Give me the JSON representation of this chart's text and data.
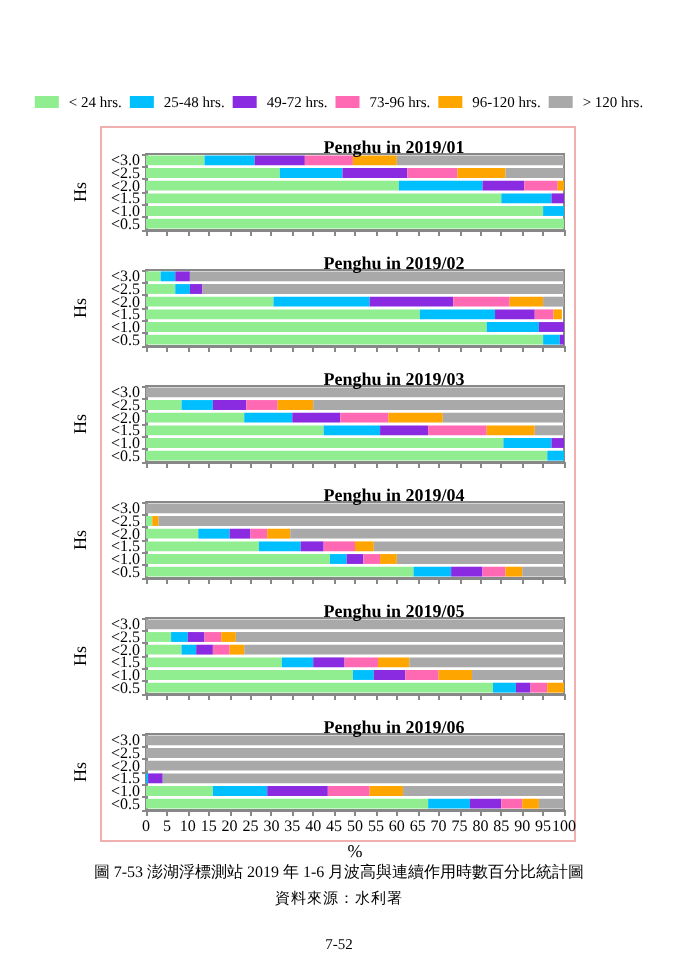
{
  "chart_data": [
    {
      "type": "bar",
      "orientation": "horizontal",
      "stacked": true,
      "title": "Penghu in 2019/01",
      "ylabel": "Hs",
      "categories": [
        "<3.0",
        "<2.5",
        "<2.0",
        "<1.5",
        "<1.0",
        "<0.5"
      ],
      "xlim": [
        0,
        100
      ],
      "xticks": [
        0,
        5,
        10,
        15,
        20,
        25,
        30,
        35,
        40,
        45,
        50,
        55,
        60,
        65,
        70,
        75,
        80,
        85,
        90,
        95,
        100
      ],
      "tick_labels": "y",
      "legend": "top",
      "series": [
        {
          "name": "< 24 hrs.",
          "color": "#90ee90",
          "values": [
            14,
            32,
            60.5,
            85,
            95,
            100
          ]
        },
        {
          "name": "25-48 hrs.",
          "color": "#00bfff",
          "values": [
            12,
            15,
            20,
            12,
            5,
            0
          ]
        },
        {
          "name": "49-72 hrs.",
          "color": "#8a2be2",
          "values": [
            12,
            15.5,
            10,
            3,
            0,
            0
          ]
        },
        {
          "name": "73-96 hrs.",
          "color": "#ff69b4",
          "values": [
            11.5,
            12,
            8,
            0,
            0,
            0
          ]
        },
        {
          "name": "96-120 hrs.",
          "color": "#ffa500",
          "values": [
            10.5,
            11.5,
            1.5,
            0,
            0,
            0
          ]
        },
        {
          "name": "> 120 hrs.",
          "color": "#a9a9a9",
          "values": [
            40,
            14,
            0,
            0,
            0,
            0
          ]
        }
      ]
    },
    {
      "type": "bar",
      "orientation": "horizontal",
      "stacked": true,
      "title": "Penghu in 2019/02",
      "ylabel": "Hs",
      "categories": [
        "<3.0",
        "<2.5",
        "<2.0",
        "<1.5",
        "<1.0",
        "<0.5"
      ],
      "xlim": [
        0,
        100
      ],
      "xticks": [
        0,
        5,
        10,
        15,
        20,
        25,
        30,
        35,
        40,
        45,
        50,
        55,
        60,
        65,
        70,
        75,
        80,
        85,
        90,
        95,
        100
      ],
      "tick_labels": "y",
      "series": [
        {
          "color": "#90ee90",
          "values": [
            3.5,
            7,
            30.5,
            65.5,
            81.5,
            95
          ]
        },
        {
          "color": "#00bfff",
          "values": [
            3.5,
            3.5,
            23,
            18,
            12.5,
            4
          ]
        },
        {
          "color": "#8a2be2",
          "values": [
            3.5,
            3,
            20,
            9.5,
            6,
            1
          ]
        },
        {
          "color": "#ff69b4",
          "values": [
            0,
            0,
            13.5,
            4.5,
            0,
            0
          ]
        },
        {
          "color": "#ffa500",
          "values": [
            0,
            0,
            8,
            2,
            0,
            0
          ]
        },
        {
          "color": "#a9a9a9",
          "values": [
            89.5,
            86.5,
            5,
            null,
            0,
            0
          ]
        }
      ]
    },
    {
      "type": "bar",
      "orientation": "horizontal",
      "stacked": true,
      "title": "Penghu in 2019/03",
      "ylabel": "Hs",
      "categories": [
        "<3.0",
        "<2.5",
        "<2.0",
        "<1.5",
        "<1.0",
        "<0.5"
      ],
      "xlim": [
        0,
        100
      ],
      "xticks": [
        0,
        5,
        10,
        15,
        20,
        25,
        30,
        35,
        40,
        45,
        50,
        55,
        60,
        65,
        70,
        75,
        80,
        85,
        90,
        95,
        100
      ],
      "tick_labels": "y",
      "series": [
        {
          "color": "#90ee90",
          "values": [
            0,
            8.5,
            23.5,
            42.5,
            85.5,
            96
          ]
        },
        {
          "color": "#00bfff",
          "values": [
            0,
            7.5,
            11.5,
            13.5,
            11.5,
            4
          ]
        },
        {
          "color": "#8a2be2",
          "values": [
            0,
            8,
            11.5,
            11.5,
            3,
            0
          ]
        },
        {
          "color": "#ff69b4",
          "values": [
            0,
            7.5,
            11.5,
            14,
            0,
            0
          ]
        },
        {
          "color": "#ffa500",
          "values": [
            0,
            8.5,
            13,
            11.5,
            0,
            0
          ]
        },
        {
          "color": "#a9a9a9",
          "values": [
            100,
            60,
            29,
            7,
            0,
            0
          ]
        }
      ]
    },
    {
      "type": "bar",
      "orientation": "horizontal",
      "stacked": true,
      "title": "Penghu in 2019/04",
      "ylabel": "Hs",
      "categories": [
        "<3.0",
        "<2.5",
        "<2.0",
        "<1.5",
        "<1.0",
        "<0.5"
      ],
      "xlim": [
        0,
        100
      ],
      "xticks": [
        0,
        5,
        10,
        15,
        20,
        25,
        30,
        35,
        40,
        45,
        50,
        55,
        60,
        65,
        70,
        75,
        80,
        85,
        90,
        95,
        100
      ],
      "tick_labels": "y",
      "series": [
        {
          "color": "#90ee90",
          "values": [
            0,
            1.5,
            12.5,
            27,
            44,
            64
          ]
        },
        {
          "color": "#00bfff",
          "values": [
            0,
            0,
            7.5,
            10,
            4,
            9
          ]
        },
        {
          "color": "#8a2be2",
          "values": [
            0,
            0,
            5,
            5.5,
            4,
            7.5
          ]
        },
        {
          "color": "#ff69b4",
          "values": [
            0,
            0,
            4,
            7.5,
            4,
            5.5
          ]
        },
        {
          "color": "#ffa500",
          "values": [
            0,
            1.5,
            5.5,
            4.5,
            4,
            4
          ]
        },
        {
          "color": "#a9a9a9",
          "values": [
            100,
            97,
            65.5,
            45.5,
            40,
            10
          ]
        }
      ]
    },
    {
      "type": "bar",
      "orientation": "horizontal",
      "stacked": true,
      "title": "Penghu in 2019/05",
      "ylabel": "Hs",
      "categories": [
        "<3.0",
        "<2.5",
        "<2.0",
        "<1.5",
        "<1.0",
        "<0.5"
      ],
      "xlim": [
        0,
        100
      ],
      "xticks": [
        0,
        5,
        10,
        15,
        20,
        25,
        30,
        35,
        40,
        45,
        50,
        55,
        60,
        65,
        70,
        75,
        80,
        85,
        90,
        95,
        100
      ],
      "tick_labels": "y",
      "series": [
        {
          "color": "#90ee90",
          "values": [
            0,
            6,
            8.5,
            32.5,
            49.5,
            83
          ]
        },
        {
          "color": "#00bfff",
          "values": [
            0,
            4,
            3.5,
            7.5,
            5,
            5.5
          ]
        },
        {
          "color": "#8a2be2",
          "values": [
            0,
            4,
            4,
            7.5,
            7.5,
            3.5
          ]
        },
        {
          "color": "#ff69b4",
          "values": [
            0,
            4,
            4,
            8,
            8,
            4
          ]
        },
        {
          "color": "#ffa500",
          "values": [
            0,
            3.5,
            3.5,
            7.5,
            8,
            4
          ]
        },
        {
          "color": "#a9a9a9",
          "values": [
            100,
            78.5,
            76.5,
            37,
            22,
            0
          ]
        }
      ]
    },
    {
      "type": "bar",
      "orientation": "horizontal",
      "stacked": true,
      "title": "Penghu in 2019/06",
      "ylabel": "Hs",
      "xlabel": "%",
      "categories": [
        "<3.0",
        "<2.5",
        "<2.0",
        "<1.5",
        "<1.0",
        "<0.5"
      ],
      "xlim": [
        0,
        100
      ],
      "xticks": [
        0,
        5,
        10,
        15,
        20,
        25,
        30,
        35,
        40,
        45,
        50,
        55,
        60,
        65,
        70,
        75,
        80,
        85,
        90,
        95,
        100
      ],
      "annotations": [
        "圖 7-53 澎湖浮標測站 2019 年 1-6 月波高與連續作用時數百分比統計圖",
        "資料來源：水利署",
        "7-52"
      ],
      "series": [
        {
          "color": "#90ee90",
          "values": [
            0,
            0,
            0,
            0,
            16,
            67.5
          ]
        },
        {
          "color": "#00bfff",
          "values": [
            0,
            0,
            0,
            0.5,
            13,
            10
          ]
        },
        {
          "color": "#8a2be2",
          "values": [
            0,
            0,
            0,
            3.5,
            14.5,
            7.5
          ]
        },
        {
          "color": "#ff69b4",
          "values": [
            0,
            0,
            0,
            0,
            10,
            5
          ]
        },
        {
          "color": "#ffa500",
          "values": [
            0,
            0,
            0,
            0,
            8,
            4
          ]
        },
        {
          "color": "#a9a9a9",
          "values": [
            100,
            100,
            100,
            96,
            38.5,
            6
          ]
        }
      ]
    }
  ]
}
